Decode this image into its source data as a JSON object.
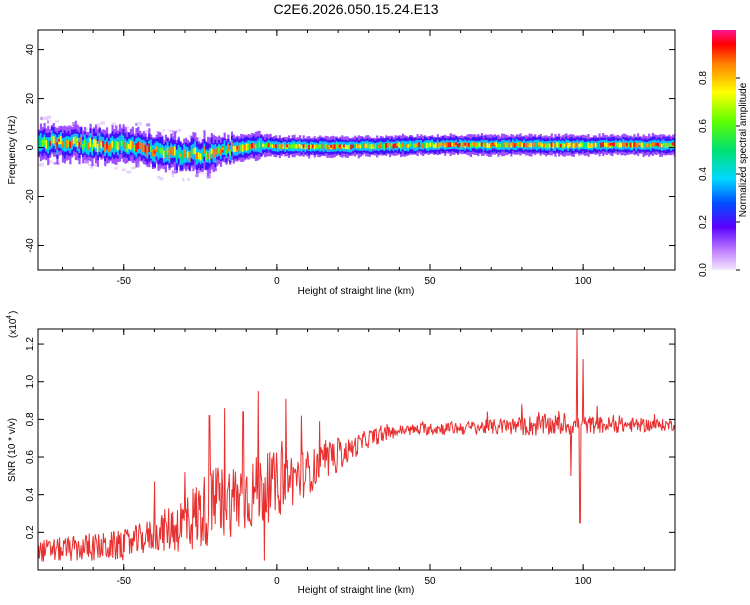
{
  "title": "C2E6.2026.050.15.24.E13",
  "colors": {
    "signal": "#e83030",
    "axis": "#000000"
  },
  "chart_data": [
    {
      "type": "heatmap",
      "title": "C2E6.2026.050.15.24.E13",
      "xlabel": "Height of straight line (km)",
      "ylabel": "Frequency (Hz)",
      "xlim": [
        -78,
        130
      ],
      "ylim": [
        -50,
        48
      ],
      "xticks": [
        -50,
        0,
        50,
        100
      ],
      "xtick_labels": [
        "-50",
        "0",
        "50",
        "100"
      ],
      "yticks": [
        -40,
        -20,
        0,
        20,
        40
      ],
      "ytick_labels": [
        "-40",
        "-20",
        "0",
        "20",
        "40"
      ],
      "colorbar": {
        "label": "Normalized spectral amplitude",
        "range": [
          0,
          1
        ],
        "ticks": [
          0.0,
          0.2,
          0.4,
          0.6,
          0.8
        ],
        "tick_labels": [
          "0.0",
          "0.2",
          "0.4",
          "0.6",
          "0.8"
        ]
      },
      "band_centerline": [
        {
          "x": -78,
          "y": 2.5
        },
        {
          "x": -65,
          "y": 1.5
        },
        {
          "x": -55,
          "y": 1
        },
        {
          "x": -45,
          "y": 0
        },
        {
          "x": -35,
          "y": -2
        },
        {
          "x": -28,
          "y": -3
        },
        {
          "x": -20,
          "y": -2
        },
        {
          "x": -12,
          "y": 0
        },
        {
          "x": -5,
          "y": 1
        },
        {
          "x": 0,
          "y": 0.5
        },
        {
          "x": 20,
          "y": 0.3
        },
        {
          "x": 50,
          "y": 1
        },
        {
          "x": 80,
          "y": 1
        },
        {
          "x": 100,
          "y": 1
        },
        {
          "x": 130,
          "y": 1
        }
      ]
    },
    {
      "type": "line",
      "xlabel": "Height of straight line (km)",
      "ylabel": "SNR (10 * v/v)",
      "multiplier_label": "(x10",
      "multiplier_exponent": "4",
      "xlim": [
        -78,
        130
      ],
      "ylim": [
        0,
        1.28
      ],
      "xticks": [
        -50,
        0,
        50,
        100
      ],
      "xtick_labels": [
        "-50",
        "0",
        "50",
        "100"
      ],
      "yticks": [
        0.2,
        0.4,
        0.6,
        0.8,
        1.0,
        1.2
      ],
      "ytick_labels": [
        "0.2",
        "0.4",
        "0.6",
        "0.8",
        "1.0",
        "1.2"
      ],
      "trend": [
        {
          "x": -78,
          "y": 0.1
        },
        {
          "x": -50,
          "y": 0.13
        },
        {
          "x": -30,
          "y": 0.25
        },
        {
          "x": -20,
          "y": 0.35
        },
        {
          "x": -10,
          "y": 0.4
        },
        {
          "x": 0,
          "y": 0.45
        },
        {
          "x": 10,
          "y": 0.52
        },
        {
          "x": 20,
          "y": 0.6
        },
        {
          "x": 30,
          "y": 0.7
        },
        {
          "x": 40,
          "y": 0.74
        },
        {
          "x": 50,
          "y": 0.75
        },
        {
          "x": 70,
          "y": 0.76
        },
        {
          "x": 90,
          "y": 0.77
        },
        {
          "x": 130,
          "y": 0.77
        }
      ],
      "noise_amplitude": [
        {
          "x": -78,
          "y": 0.06
        },
        {
          "x": -40,
          "y": 0.09
        },
        {
          "x": -25,
          "y": 0.2
        },
        {
          "x": -10,
          "y": 0.2
        },
        {
          "x": 0,
          "y": 0.18
        },
        {
          "x": 10,
          "y": 0.12
        },
        {
          "x": 25,
          "y": 0.06
        },
        {
          "x": 40,
          "y": 0.03
        },
        {
          "x": 70,
          "y": 0.04
        },
        {
          "x": 85,
          "y": 0.06
        },
        {
          "x": 130,
          "y": 0.03
        }
      ],
      "peaks": [
        {
          "x": -40,
          "y": 0.47
        },
        {
          "x": -30,
          "y": 0.52
        },
        {
          "x": -22,
          "y": 0.82
        },
        {
          "x": -17,
          "y": 0.86
        },
        {
          "x": -11,
          "y": 0.84
        },
        {
          "x": -6,
          "y": 0.95
        },
        {
          "x": -4,
          "y": 0.8
        },
        {
          "x": 3,
          "y": 0.91
        },
        {
          "x": 8,
          "y": 0.82
        },
        {
          "x": 14,
          "y": 0.79
        },
        {
          "x": 20,
          "y": 0.7
        },
        {
          "x": 80,
          "y": 0.88
        },
        {
          "x": 96,
          "y": 1.2
        },
        {
          "x": 98,
          "y": 1.28
        },
        {
          "x": 99,
          "y": 0.25
        },
        {
          "x": 100,
          "y": 1.12
        }
      ],
      "troughs": [
        {
          "x": -4,
          "y": 0.05
        },
        {
          "x": 96,
          "y": 0.5
        },
        {
          "x": 99,
          "y": 0.25
        }
      ]
    }
  ]
}
